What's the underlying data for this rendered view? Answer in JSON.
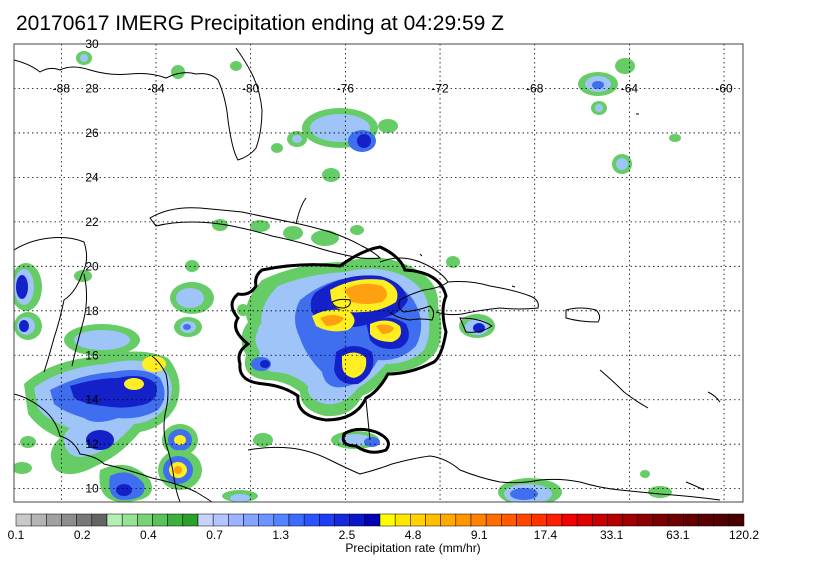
{
  "title": "20170617 IMERG Precipitation ending at 04:29:59 Z",
  "map": {
    "lon_range": [
      -90,
      -59.2
    ],
    "lat_range": [
      9.4,
      30
    ],
    "lon_ticks": [
      "-88",
      "-84",
      "-80",
      "-76",
      "-72",
      "-68",
      "-64",
      "-60"
    ],
    "lat_ticks": [
      "10",
      "12",
      "14",
      "16",
      "18",
      "20",
      "22",
      "24",
      "26",
      "28",
      "30"
    ],
    "grid": "dotted"
  },
  "colorbar": {
    "label": "Precipitation rate (mm/hr)",
    "tick_labels": [
      "0.1",
      "0.2",
      "0.4",
      "0.7",
      "1.3",
      "2.5",
      "4.8",
      "9.1",
      "17.4",
      "33.1",
      "63.1",
      "120.2"
    ],
    "colors": [
      "#c8c8c8",
      "#b4b4b4",
      "#a0a0a0",
      "#8c8c8c",
      "#787878",
      "#646464",
      "#b4f0b4",
      "#96e296",
      "#78d278",
      "#5ac25a",
      "#3cb23c",
      "#2aa02a",
      "#c8d2ff",
      "#b4c4ff",
      "#9cb4ff",
      "#84a4ff",
      "#6c94ff",
      "#5484ff",
      "#3c6cff",
      "#2a54ff",
      "#1e3cf0",
      "#1428dc",
      "#0a14c8",
      "#0000b4",
      "#ffff00",
      "#ffe600",
      "#ffd200",
      "#ffbe00",
      "#ffaa00",
      "#ff9600",
      "#ff8200",
      "#ff6e00",
      "#ff5a00",
      "#ff4600",
      "#ff3200",
      "#ff1e00",
      "#f00000",
      "#dc0000",
      "#c80000",
      "#b40000",
      "#a00000",
      "#8c0000",
      "#780000",
      "#6e0000",
      "#640000",
      "#5a0000",
      "#500000",
      "#460000"
    ]
  },
  "palette": {
    "green": "#66cc66",
    "lightblue": "#9ec4f8",
    "blue": "#3f6fee",
    "darkblue": "#1420c8",
    "yellow": "#ffee22",
    "orange": "#ffa010"
  }
}
